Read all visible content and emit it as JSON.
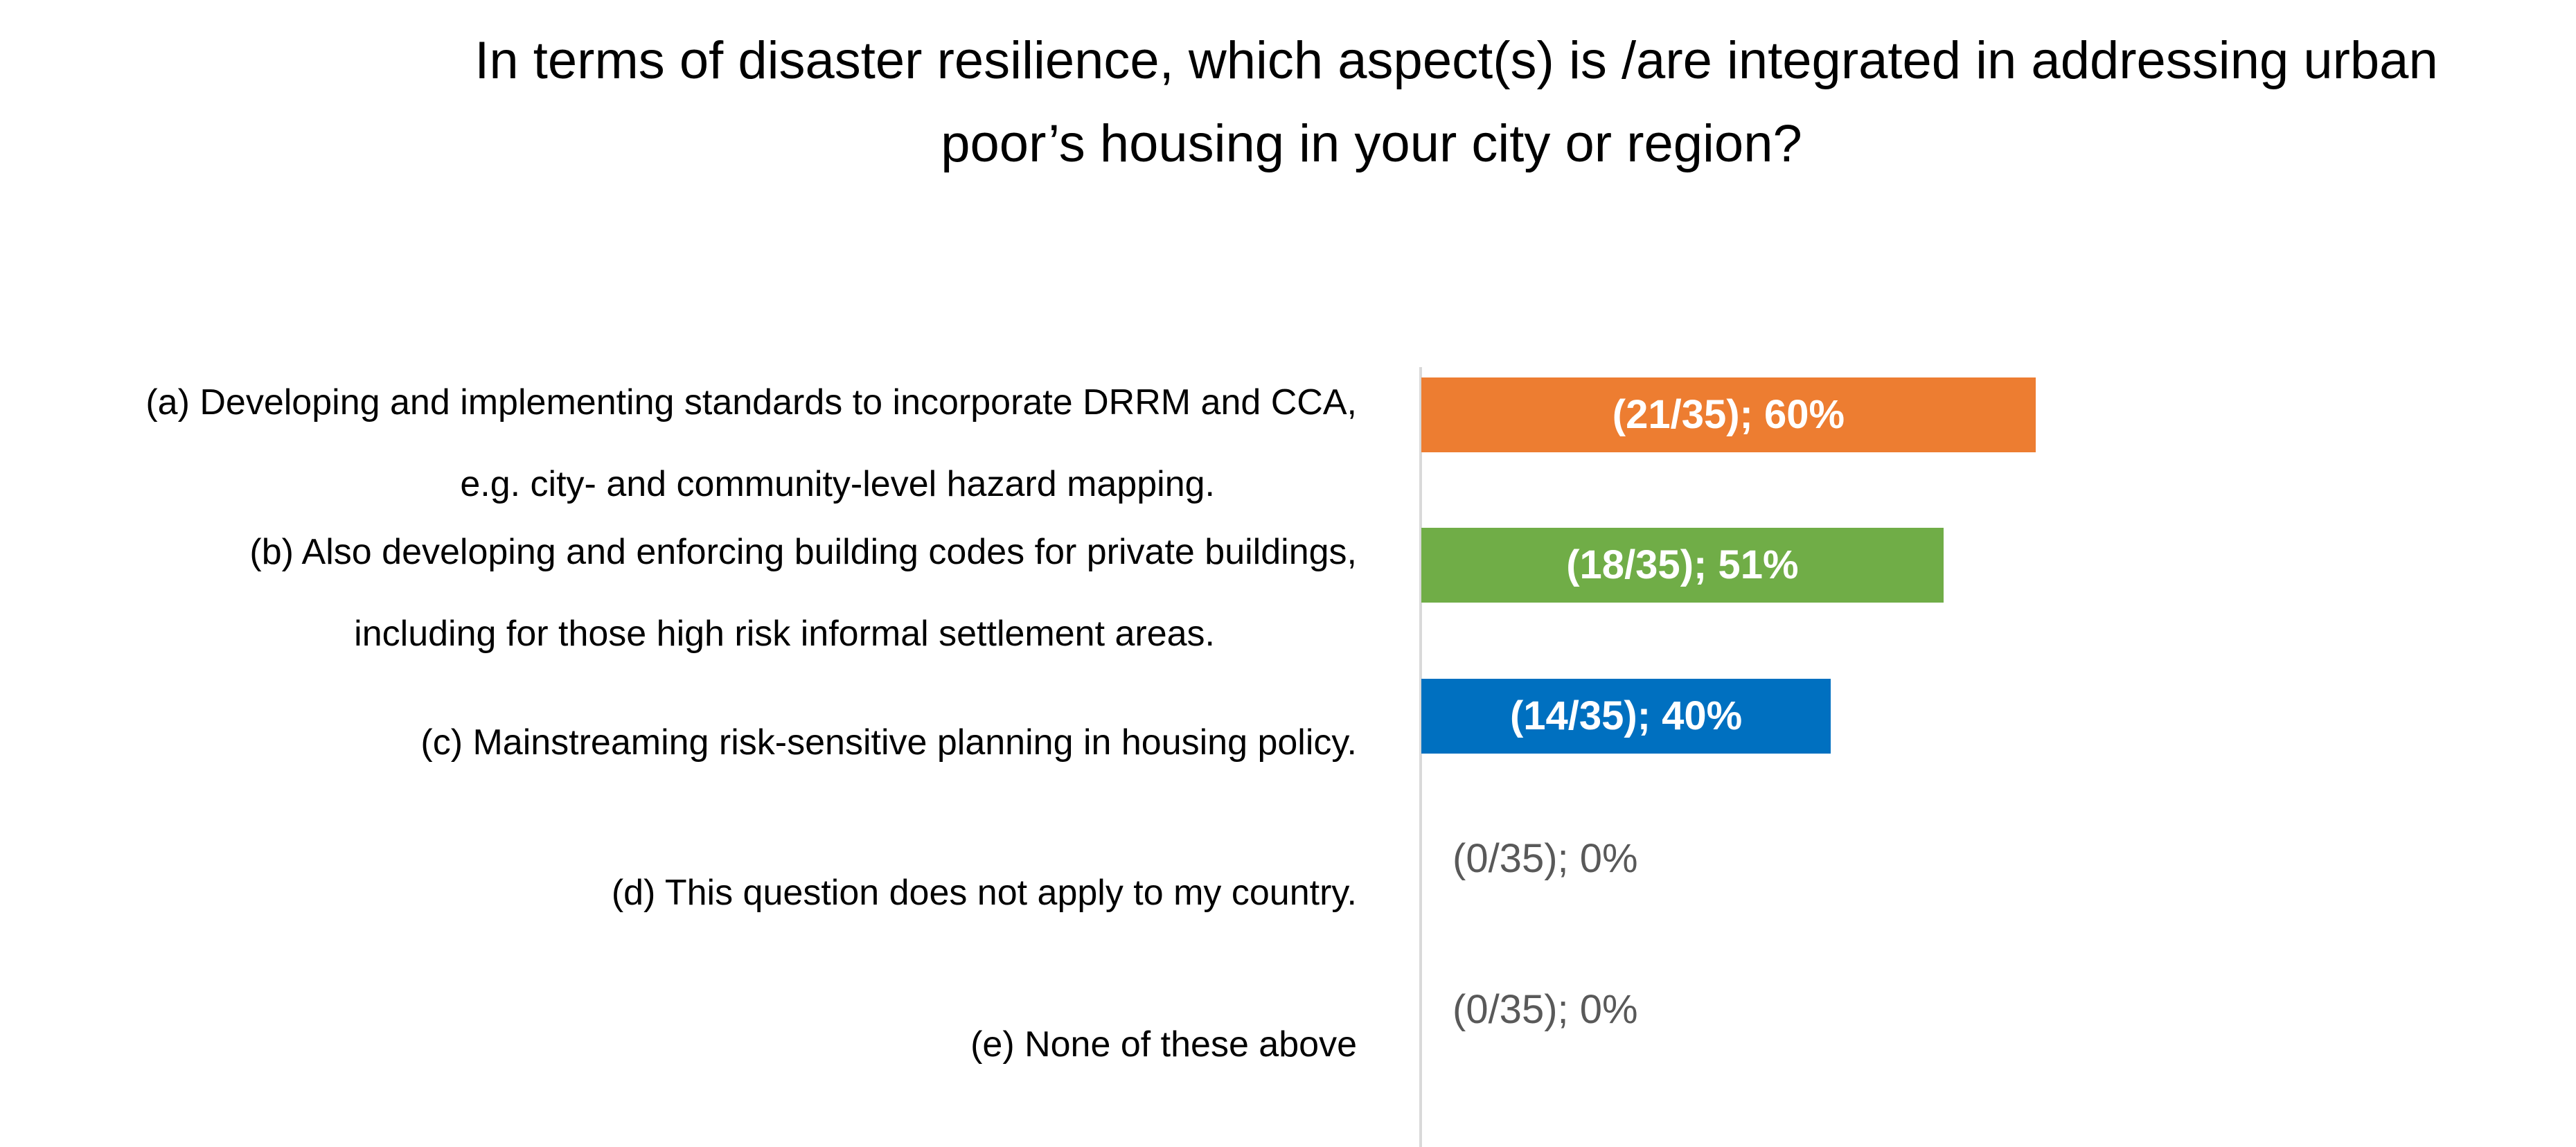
{
  "title": {
    "line1": "In terms of disaster resilience, which aspect(s) is /are integrated in addressing urban",
    "line2": "poor’s housing in your city or region?"
  },
  "chart_data": {
    "type": "bar",
    "orientation": "horizontal",
    "title": "In terms of disaster resilience, which aspect(s) is /are integrated in addressing urban poor’s housing in your city or region?",
    "categories": [
      [
        "(a) Developing and implementing standards to incorporate DRRM and CCA,",
        "e.g. city- and community-level hazard mapping."
      ],
      [
        "(b) Also developing and enforcing building codes for private buildings,",
        "including for those high risk informal settlement areas."
      ],
      [
        "(c) Mainstreaming risk-sensitive planning in housing policy."
      ],
      [
        "(d) This question does not apply to my country."
      ],
      [
        "(e) None of these above"
      ]
    ],
    "counts": [
      21,
      18,
      14,
      0,
      0
    ],
    "total": 35,
    "values": [
      60,
      51,
      40,
      0,
      0
    ],
    "unit": "%",
    "data_labels": [
      "(21/35); 60%",
      "(18/35); 51%",
      "(14/35); 40%",
      "(0/35); 0%",
      "(0/35); 0%"
    ],
    "colors": [
      "#ED7D31",
      "#70AD47",
      "#0070C0",
      "#ED7D31",
      "#ED7D31"
    ],
    "label_color_outside": "#595959",
    "grid": false,
    "legend": "none",
    "xaxis_visible": false
  }
}
